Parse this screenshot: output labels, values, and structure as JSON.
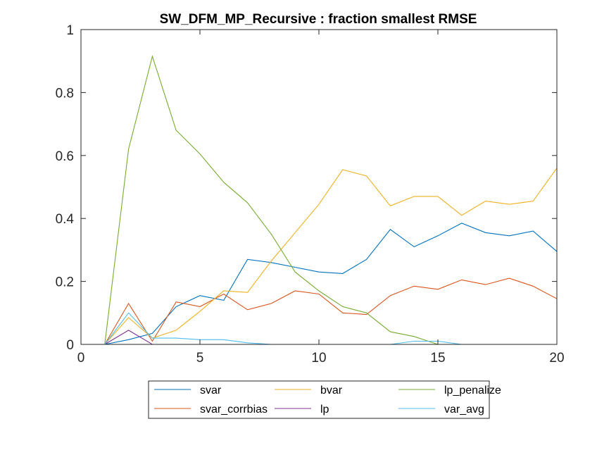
{
  "chart_data": {
    "type": "line",
    "title": "SW_DFM_MP_Recursive : fraction smallest RMSE",
    "xlabel": "",
    "ylabel": "",
    "xlim": [
      0,
      20
    ],
    "ylim": [
      0,
      1
    ],
    "xticks": [
      "0",
      "5",
      "10",
      "15",
      "20"
    ],
    "yticks": [
      "0",
      "0.2",
      "0.4",
      "0.6",
      "0.8",
      "1"
    ],
    "grid": false,
    "legend_position": "bottom-center",
    "x": [
      1,
      2,
      3,
      4,
      5,
      6,
      7,
      8,
      9,
      10,
      11,
      12,
      13,
      14,
      15,
      16,
      17,
      18,
      19,
      20
    ],
    "series": [
      {
        "name": "svar",
        "color": "#0072BD",
        "values": [
          0,
          0.015,
          0.035,
          0.12,
          0.155,
          0.14,
          0.27,
          0.26,
          0.245,
          0.23,
          0.225,
          0.27,
          0.365,
          0.31,
          0.345,
          0.385,
          0.355,
          0.345,
          0.36,
          0.295
        ]
      },
      {
        "name": "svar_corrbias",
        "color": "#D95319",
        "values": [
          0,
          0.13,
          0.01,
          0.135,
          0.12,
          0.16,
          0.11,
          0.13,
          0.17,
          0.16,
          0.1,
          0.095,
          0.155,
          0.185,
          0.175,
          0.205,
          0.19,
          0.21,
          0.185,
          0.145
        ]
      },
      {
        "name": "bvar",
        "color": "#EDB120",
        "values": [
          0,
          0.085,
          0.02,
          0.045,
          0.105,
          0.17,
          0.165,
          0.265,
          0.355,
          0.445,
          0.555,
          0.535,
          0.44,
          0.47,
          0.47,
          0.41,
          0.455,
          0.445,
          0.455,
          0.56
        ]
      },
      {
        "name": "lp",
        "color": "#7E2F8E",
        "values": [
          0,
          0.045,
          0,
          0,
          0,
          0,
          0,
          0,
          0,
          0,
          0,
          0,
          0,
          0,
          0,
          0,
          0,
          0,
          0,
          0
        ]
      },
      {
        "name": "lp_penalize",
        "color": "#77AC30",
        "values": [
          0,
          0.62,
          0.915,
          0.68,
          0.605,
          0.515,
          0.45,
          0.35,
          0.23,
          0.17,
          0.12,
          0.1,
          0.04,
          0.025,
          0,
          0,
          0,
          0,
          0,
          0
        ]
      },
      {
        "name": "var_avg",
        "color": "#4DBEEE",
        "values": [
          0,
          0.1,
          0.02,
          0.02,
          0.015,
          0.015,
          0.005,
          0,
          0,
          0,
          0,
          0,
          0,
          0.01,
          0.01,
          0,
          0,
          0,
          0,
          0
        ]
      }
    ],
    "legend_order": [
      "svar",
      "bvar",
      "lp_penalize",
      "svar_corrbias",
      "lp",
      "var_avg"
    ]
  }
}
